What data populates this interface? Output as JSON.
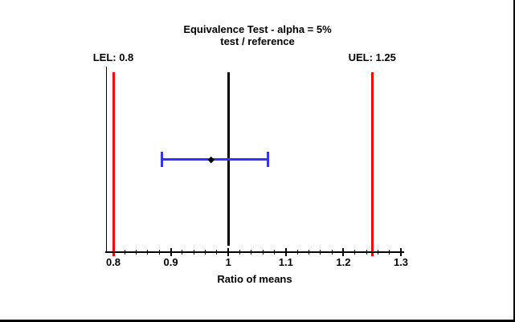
{
  "chart_data": {
    "type": "scatter",
    "title": "Equivalence Test - alpha = 5%",
    "subtitle": "test / reference",
    "xlabel": "Ratio of means",
    "xlim": [
      0.786,
      1.306
    ],
    "x_major_ticks": [
      0.8,
      0.9,
      1.0,
      1.1,
      1.2,
      1.3
    ],
    "x_tick_labels": [
      "0.8",
      "0.9",
      "1",
      "1.1",
      "1.2",
      "1.3"
    ],
    "x_minor_tick_step": 0.02,
    "lel": 0.8,
    "uel": 1.25,
    "lel_label": "LEL: 0.8",
    "uel_label": "UEL: 1.25",
    "reference_line": 1.0,
    "point_estimate": 0.97,
    "ci_lower": 0.884,
    "ci_upper": 1.069,
    "grid": false,
    "legend": false,
    "colors": {
      "limit_line": "#ff0000",
      "reference_line": "#000000",
      "interval": "#3333ff",
      "marker": "#000000",
      "text": "#000000"
    }
  }
}
